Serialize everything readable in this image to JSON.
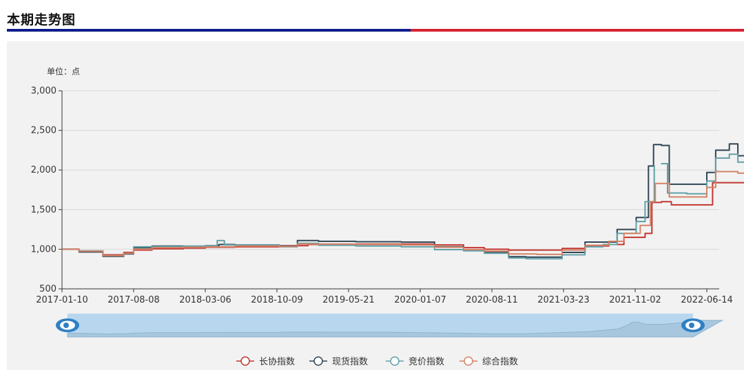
{
  "header": {
    "title": "本期走势图"
  },
  "colors": {
    "bar_left": "#0e1d8a",
    "bar_right": "#d52230",
    "panel_bg": "#f2f2f2",
    "zoom_fill": "#b8d7ee",
    "zoom_handle": "#2f80c4"
  },
  "chart_data": {
    "type": "line",
    "unit_label": "单位：点",
    "ylim": [
      500,
      3000
    ],
    "yticks": [
      "3,000",
      "2,500",
      "2,000",
      "1,500",
      "1,000",
      "500"
    ],
    "xticks": [
      "2017-01-10",
      "2017-08-08",
      "2018-03-06",
      "2018-10-09",
      "2019-05-21",
      "2020-01-07",
      "2020-08-11",
      "2021-03-23",
      "2021-11-02",
      "2022-06-14"
    ],
    "grid": true,
    "legend_position": "bottom",
    "has_zoom_slider": true,
    "series": [
      {
        "name": "长协指数",
        "color": "#c23531",
        "points": [
          [
            "2017-01-10",
            1000
          ],
          [
            "2017-03-01",
            975
          ],
          [
            "2017-05-10",
            930
          ],
          [
            "2017-07-10",
            960
          ],
          [
            "2017-08-08",
            990
          ],
          [
            "2017-10-01",
            1005
          ],
          [
            "2018-01-01",
            1015
          ],
          [
            "2018-03-06",
            1025
          ],
          [
            "2018-06-01",
            1030
          ],
          [
            "2018-10-09",
            1045
          ],
          [
            "2019-01-01",
            1060
          ],
          [
            "2019-05-21",
            1065
          ],
          [
            "2019-10-01",
            1065
          ],
          [
            "2020-01-07",
            1055
          ],
          [
            "2020-04-01",
            1020
          ],
          [
            "2020-06-01",
            1000
          ],
          [
            "2020-08-11",
            990
          ],
          [
            "2020-11-01",
            990
          ],
          [
            "2021-01-15",
            1010
          ],
          [
            "2021-03-23",
            1040
          ],
          [
            "2021-06-01",
            1060
          ],
          [
            "2021-07-15",
            1150
          ],
          [
            "2021-09-15",
            1200
          ],
          [
            "2021-10-05",
            1590
          ],
          [
            "2021-11-02",
            1600
          ],
          [
            "2021-12-01",
            1560
          ],
          [
            "2022-03-01",
            1560
          ],
          [
            "2022-04-01",
            1840
          ],
          [
            "2022-06-14",
            1840
          ],
          [
            "2022-07-20",
            1850
          ]
        ]
      },
      {
        "name": "现货指数",
        "color": "#2f4554",
        "points": [
          [
            "2017-01-10",
            1000
          ],
          [
            "2017-03-01",
            965
          ],
          [
            "2017-05-10",
            910
          ],
          [
            "2017-07-10",
            940
          ],
          [
            "2017-08-08",
            1020
          ],
          [
            "2017-10-01",
            1040
          ],
          [
            "2018-01-01",
            1035
          ],
          [
            "2018-03-06",
            1045
          ],
          [
            "2018-04-15",
            1060
          ],
          [
            "2018-06-01",
            1055
          ],
          [
            "2018-10-09",
            1040
          ],
          [
            "2018-12-01",
            1110
          ],
          [
            "2019-02-01",
            1100
          ],
          [
            "2019-05-21",
            1095
          ],
          [
            "2019-10-01",
            1090
          ],
          [
            "2020-01-07",
            1030
          ],
          [
            "2020-04-01",
            990
          ],
          [
            "2020-06-01",
            960
          ],
          [
            "2020-08-11",
            905
          ],
          [
            "2020-10-01",
            900
          ],
          [
            "2021-01-15",
            960
          ],
          [
            "2021-03-23",
            1090
          ],
          [
            "2021-05-15",
            1090
          ],
          [
            "2021-06-25",
            1250
          ],
          [
            "2021-08-20",
            1400
          ],
          [
            "2021-09-25",
            2050
          ],
          [
            "2021-10-10",
            2320
          ],
          [
            "2021-11-02",
            2310
          ],
          [
            "2021-11-25",
            1820
          ],
          [
            "2022-01-15",
            1820
          ],
          [
            "2022-03-15",
            1970
          ],
          [
            "2022-04-10",
            2250
          ],
          [
            "2022-05-20",
            2330
          ],
          [
            "2022-06-14",
            2180
          ],
          [
            "2022-07-20",
            2170
          ]
        ]
      },
      {
        "name": "竞价指数",
        "color": "#61a0a8",
        "points": [
          [
            "2017-01-10",
            1000
          ],
          [
            "2017-03-01",
            980
          ],
          [
            "2017-05-10",
            920
          ],
          [
            "2017-07-10",
            950
          ],
          [
            "2017-08-08",
            1030
          ],
          [
            "2017-10-01",
            1035
          ],
          [
            "2018-01-01",
            1040
          ],
          [
            "2018-03-06",
            1045
          ],
          [
            "2018-04-10",
            1110
          ],
          [
            "2018-05-01",
            1055
          ],
          [
            "2018-10-09",
            1030
          ],
          [
            "2018-12-01",
            1075
          ],
          [
            "2019-02-01",
            1050
          ],
          [
            "2019-05-21",
            1040
          ],
          [
            "2019-10-01",
            1030
          ],
          [
            "2020-01-07",
            995
          ],
          [
            "2020-04-01",
            980
          ],
          [
            "2020-06-01",
            950
          ],
          [
            "2020-08-11",
            890
          ],
          [
            "2020-10-01",
            880
          ],
          [
            "2021-01-15",
            930
          ],
          [
            "2021-03-23",
            1030
          ],
          [
            "2021-05-15",
            1060
          ],
          [
            "2021-06-25",
            1200
          ],
          [
            "2021-08-20",
            1350
          ],
          [
            "2021-09-15",
            1600
          ],
          [
            "2021-10-12",
            2060
          ]
        ],
        "points_2": [
          [
            "2021-11-01",
            2080
          ],
          [
            "2021-11-20",
            1710
          ],
          [
            "2022-01-15",
            1700
          ],
          [
            "2022-03-15",
            1860
          ],
          [
            "2022-04-10",
            2150
          ],
          [
            "2022-05-20",
            2200
          ],
          [
            "2022-06-14",
            2100
          ],
          [
            "2022-07-20",
            2050
          ]
        ]
      },
      {
        "name": "综合指数",
        "color": "#d48265",
        "points": [
          [
            "2017-01-10",
            1000
          ],
          [
            "2017-03-01",
            975
          ],
          [
            "2017-05-10",
            920
          ],
          [
            "2017-07-10",
            950
          ],
          [
            "2017-08-08",
            1000
          ],
          [
            "2017-10-01",
            1020
          ],
          [
            "2018-01-01",
            1025
          ],
          [
            "2018-03-06",
            1030
          ],
          [
            "2018-06-01",
            1040
          ],
          [
            "2018-10-09",
            1035
          ],
          [
            "2018-12-01",
            1065
          ],
          [
            "2019-05-21",
            1060
          ],
          [
            "2019-10-01",
            1055
          ],
          [
            "2020-01-07",
            1025
          ],
          [
            "2020-04-01",
            995
          ],
          [
            "2020-06-01",
            975
          ],
          [
            "2020-08-11",
            940
          ],
          [
            "2020-11-01",
            935
          ],
          [
            "2021-01-15",
            990
          ],
          [
            "2021-03-23",
            1050
          ],
          [
            "2021-06-01",
            1100
          ],
          [
            "2021-07-15",
            1200
          ],
          [
            "2021-09-01",
            1300
          ],
          [
            "2021-10-01",
            1600
          ],
          [
            "2021-10-15",
            1830
          ],
          [
            "2021-11-02",
            1830
          ],
          [
            "2021-11-25",
            1660
          ],
          [
            "2022-01-15",
            1660
          ],
          [
            "2022-03-15",
            1780
          ],
          [
            "2022-04-10",
            1980
          ],
          [
            "2022-06-14",
            1960
          ],
          [
            "2022-07-20",
            1960
          ]
        ]
      }
    ]
  }
}
